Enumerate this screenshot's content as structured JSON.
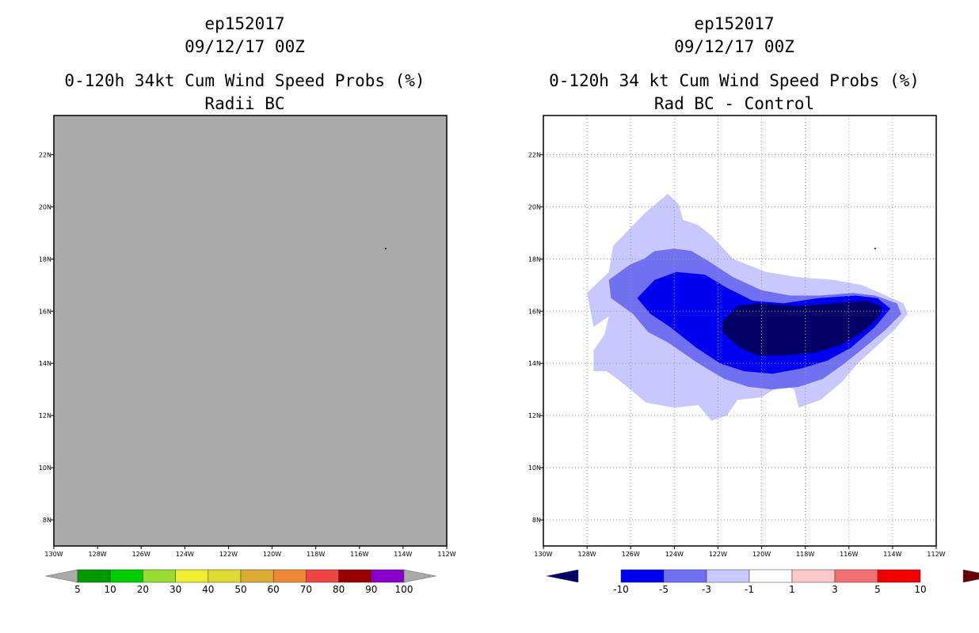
{
  "left": {
    "title_storm": "ep152017",
    "title_date": "09/12/17 00Z",
    "title_product": "0-120h 34kt Cum Wind Speed Probs (%)",
    "title_sub": "Radii BC",
    "map_fill_color": "#aaaaaa",
    "colorbar": {
      "colors": [
        "#009900",
        "#00cc00",
        "#99dd33",
        "#eeee33",
        "#dddd33",
        "#ddaa33",
        "#ee8833",
        "#ee4444",
        "#990000",
        "#8800cc"
      ],
      "end_low_color": "#aaaaaa",
      "end_high_color": "#aaaaaa",
      "labels": [
        "5",
        "10",
        "20",
        "30",
        "40",
        "50",
        "60",
        "70",
        "80",
        "90",
        "100"
      ]
    }
  },
  "right": {
    "title_storm": "ep152017",
    "title_date": "09/12/17 00Z",
    "title_product": "0-120h 34 kt Cum Wind Speed Probs (%)",
    "title_sub": "Rad BC - Control",
    "contour_colors": [
      "#c8c8ff",
      "#7070f0",
      "#0000f0",
      "#000066"
    ],
    "colorbar": {
      "colors": [
        "#000066",
        "#0000f0",
        "#7070f0",
        "#c8c8ff",
        "#ffffff",
        "#ffc8c8",
        "#f07070",
        "#f00000",
        "#660000"
      ],
      "labels": [
        "-10",
        "-5",
        "-3",
        "-1",
        "1",
        "3",
        "5",
        "10"
      ]
    }
  },
  "axes": {
    "x_labels": [
      "130W",
      "128W",
      "126W",
      "124W",
      "122W",
      "120W",
      "118W",
      "116W",
      "114W",
      "112W"
    ],
    "y_labels": [
      "8N",
      "10N",
      "12N",
      "14N",
      "16N",
      "18N",
      "20N",
      "22N"
    ],
    "lon_range": [
      -130,
      -112
    ],
    "lat_range": [
      7,
      23.5
    ]
  }
}
